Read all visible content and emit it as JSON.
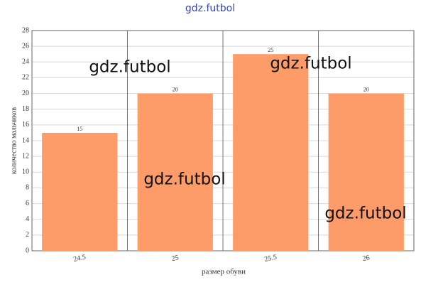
{
  "chart_data": {
    "type": "bar",
    "categories": [
      "24.5",
      "25",
      "25.5",
      "26"
    ],
    "values": [
      15,
      20,
      25,
      20
    ],
    "color": "#fd9c68",
    "ylim": [
      0,
      28
    ],
    "yticks": [
      0,
      2,
      4,
      6,
      8,
      10,
      12,
      14,
      16,
      18,
      20,
      22,
      24,
      26,
      28
    ],
    "grid": true,
    "xlabel": "размер обуви",
    "ylabel": "количество мальчиков",
    "annotations": [
      "gdz.futbol",
      "gdz.futbol",
      "gdz.futbol",
      "gdz.futbol",
      "gdz.futbol"
    ]
  }
}
